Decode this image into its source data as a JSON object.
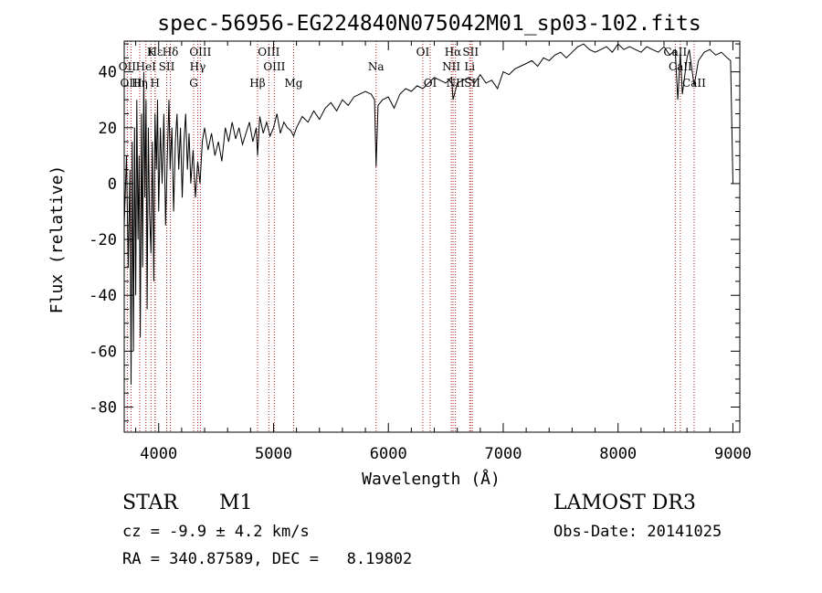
{
  "chart_data": {
    "type": "line",
    "title": "spec-56956-EG224840N075042M01_sp03-102.fits",
    "xlabel": "Wavelength (Å)",
    "ylabel": "Flux (relative)",
    "xlim": [
      3700,
      9060
    ],
    "ylim": [
      -89,
      51
    ],
    "xticks": [
      4000,
      5000,
      6000,
      7000,
      8000,
      9000
    ],
    "yticks": [
      -80,
      -60,
      -40,
      -20,
      0,
      20,
      40
    ],
    "xtick_labels": [
      "4000",
      "5000",
      "6000",
      "7000",
      "8000",
      "9000"
    ],
    "ytick_labels": [
      "-80",
      "-60",
      "-40",
      "-20",
      "0",
      "20",
      "40"
    ],
    "series": [
      {
        "name": "spectrum",
        "x": [
          3700,
          3720,
          3735,
          3750,
          3760,
          3770,
          3780,
          3790,
          3800,
          3810,
          3820,
          3830,
          3840,
          3850,
          3860,
          3870,
          3880,
          3890,
          3900,
          3910,
          3920,
          3933,
          3945,
          3958,
          3968,
          3980,
          3990,
          4000,
          4015,
          4030,
          4045,
          4060,
          4075,
          4090,
          4100,
          4115,
          4130,
          4145,
          4160,
          4175,
          4190,
          4205,
          4220,
          4235,
          4250,
          4265,
          4280,
          4300,
          4320,
          4340,
          4360,
          4380,
          4400,
          4430,
          4460,
          4490,
          4520,
          4550,
          4580,
          4610,
          4640,
          4670,
          4700,
          4730,
          4760,
          4790,
          4820,
          4850,
          4861,
          4880,
          4910,
          4940,
          4970,
          5000,
          5030,
          5060,
          5090,
          5120,
          5150,
          5175,
          5200,
          5250,
          5300,
          5350,
          5400,
          5450,
          5500,
          5550,
          5600,
          5650,
          5700,
          5750,
          5800,
          5850,
          5880,
          5893,
          5910,
          5950,
          6000,
          6050,
          6100,
          6150,
          6200,
          6250,
          6300,
          6350,
          6400,
          6450,
          6500,
          6550,
          6563,
          6600,
          6650,
          6700,
          6750,
          6800,
          6850,
          6900,
          6950,
          7000,
          7050,
          7100,
          7150,
          7200,
          7250,
          7300,
          7350,
          7400,
          7450,
          7500,
          7550,
          7600,
          7650,
          7700,
          7750,
          7800,
          7850,
          7900,
          7950,
          8000,
          8050,
          8100,
          8150,
          8200,
          8250,
          8300,
          8350,
          8400,
          8450,
          8498,
          8520,
          8542,
          8560,
          8600,
          8620,
          8662,
          8700,
          8750,
          8800,
          8850,
          8900,
          8950,
          8980,
          9000
        ],
        "y": [
          -15,
          10,
          -30,
          5,
          -72,
          15,
          -60,
          20,
          -40,
          30,
          -20,
          10,
          -55,
          25,
          -30,
          40,
          -5,
          30,
          -45,
          20,
          -10,
          -25,
          15,
          -35,
          25,
          5,
          30,
          -10,
          20,
          0,
          25,
          -15,
          10,
          30,
          5,
          20,
          -10,
          15,
          25,
          5,
          20,
          -5,
          15,
          25,
          5,
          18,
          0,
          12,
          -5,
          8,
          0,
          15,
          20,
          12,
          18,
          10,
          15,
          8,
          20,
          15,
          22,
          16,
          20,
          14,
          18,
          22,
          15,
          20,
          10,
          24,
          18,
          22,
          17,
          20,
          25,
          18,
          22,
          20,
          19,
          17,
          20,
          24,
          22,
          26,
          23,
          27,
          29,
          26,
          30,
          28,
          31,
          32,
          33,
          32,
          30,
          6,
          28,
          30,
          31,
          27,
          32,
          34,
          33,
          35,
          34,
          36,
          38,
          37,
          36,
          38,
          30,
          36,
          37,
          38,
          36,
          39,
          36,
          37,
          34,
          40,
          39,
          41,
          42,
          43,
          44,
          42,
          45,
          44,
          46,
          47,
          45,
          47,
          49,
          50,
          48,
          47,
          48,
          49,
          47,
          50,
          48,
          49,
          48,
          47,
          49,
          48,
          47,
          49,
          46,
          48,
          30,
          47,
          32,
          45,
          48,
          35,
          44,
          47,
          48,
          46,
          47,
          45,
          44,
          0
        ]
      }
    ],
    "line_labels": [
      {
        "name": "Hε",
        "wl": 3970,
        "row": 1
      },
      {
        "name": "OII",
        "wl": 3727,
        "row": 2
      },
      {
        "name": "Hη",
        "wl": 3835,
        "row": 3
      },
      {
        "name": "OIII",
        "wl": 3760,
        "row": 3
      },
      {
        "name": "K",
        "wl": 3933,
        "row": 1
      },
      {
        "name": "H",
        "wl": 3968,
        "row": 3
      },
      {
        "name": "HeI",
        "wl": 3889,
        "row": 2
      },
      {
        "name": "SII",
        "wl": 4070,
        "row": 2
      },
      {
        "name": "Hδ",
        "wl": 4102,
        "row": 1
      },
      {
        "name": "OIII",
        "wl": 4363,
        "row": 1
      },
      {
        "name": "Hγ",
        "wl": 4340,
        "row": 2
      },
      {
        "name": "G",
        "wl": 4305,
        "row": 3
      },
      {
        "name": "Hβ",
        "wl": 4861,
        "row": 3
      },
      {
        "name": "OIII",
        "wl": 4959,
        "row": 1
      },
      {
        "name": "OIII",
        "wl": 5007,
        "row": 2
      },
      {
        "name": "Mg",
        "wl": 5175,
        "row": 3
      },
      {
        "name": "Na",
        "wl": 5893,
        "row": 2
      },
      {
        "name": "OI",
        "wl": 6300,
        "row": 1
      },
      {
        "name": "OI",
        "wl": 6364,
        "row": 3
      },
      {
        "name": "Hα",
        "wl": 6563,
        "row": 1
      },
      {
        "name": "SII",
        "wl": 6716,
        "row": 1
      },
      {
        "name": "NII",
        "wl": 6548,
        "row": 2
      },
      {
        "name": "Li",
        "wl": 6708,
        "row": 2
      },
      {
        "name": "NII",
        "wl": 6584,
        "row": 3
      },
      {
        "name": "SII",
        "wl": 6731,
        "row": 3
      },
      {
        "name": "CaII",
        "wl": 8498,
        "row": 1
      },
      {
        "name": "CaII",
        "wl": 8542,
        "row": 2
      },
      {
        "name": "CaII",
        "wl": 8662,
        "row": 3
      }
    ],
    "line_color": "#000000",
    "marker_color": "#b22222"
  },
  "info": {
    "object_class": "STAR",
    "subclass": "M1",
    "survey": "LAMOST DR3",
    "cz": "cz = -9.9 ± 4.2 km/s",
    "obs_date": "Obs-Date: 20141025",
    "coords": "RA = 340.87589, DEC =   8.19802"
  }
}
